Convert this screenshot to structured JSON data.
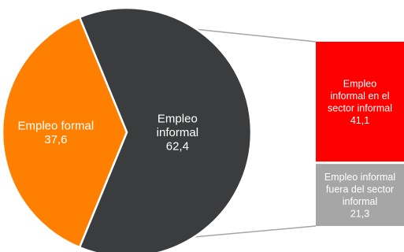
{
  "chart_data": {
    "type": "pie",
    "subtype": "pie-of-bar",
    "slices": [
      {
        "label": [
          "Empleo",
          "informal"
        ],
        "value": 62.4,
        "value_text": "62,4",
        "color": "#3b3c3e",
        "text_color": "#ffffff"
      },
      {
        "label": [
          "Empleo formal"
        ],
        "value": 37.6,
        "value_text": "37,6",
        "color": "#ff8000",
        "text_color": "#ffffff"
      }
    ],
    "breakdown": {
      "of": "Empleo informal",
      "segments": [
        {
          "label": [
            "Empleo",
            "informal en el",
            "sector informal"
          ],
          "value": 41.1,
          "value_text": "41,1",
          "color": "#ff0000",
          "text_color": "#ffffff"
        },
        {
          "label": [
            "Empleo informal",
            "fuera del sector",
            "informal"
          ],
          "value": 21.3,
          "value_text": "21,3",
          "color": "#a6a6a6",
          "text_color": "#ffffff"
        }
      ]
    },
    "connector_color": "#a6a6a6",
    "edge_color": "#ffffff"
  }
}
